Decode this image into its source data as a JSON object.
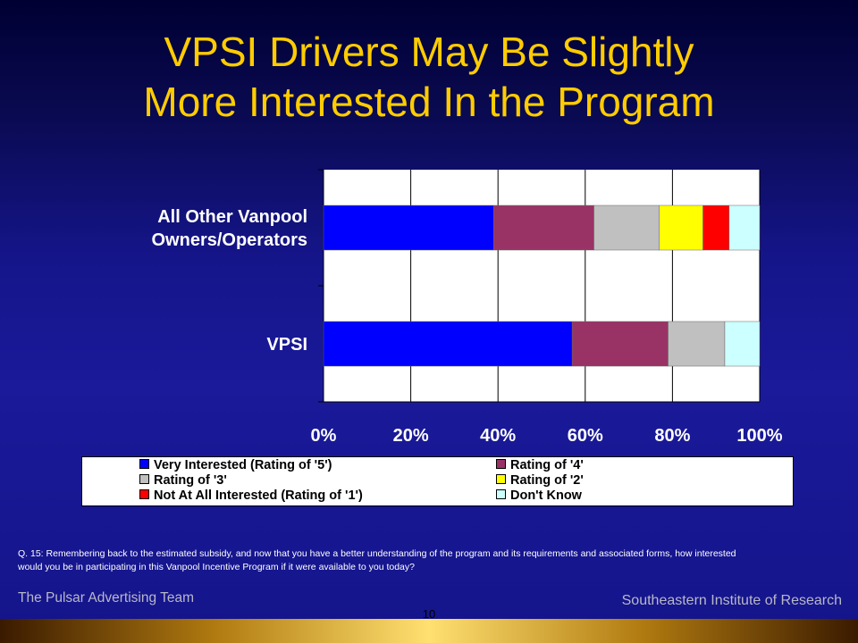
{
  "title_lines": [
    "VPSI Drivers May Be Slightly",
    "More Interested In the Program"
  ],
  "chart_data": {
    "type": "bar",
    "orientation": "horizontal",
    "stacked": true,
    "percent": true,
    "categories": [
      [
        "All Other Vanpool",
        "Owners/Operators"
      ],
      [
        "VPSI"
      ]
    ],
    "series": [
      {
        "name": "Very Interested (Rating of '5')",
        "color": "#0000ff",
        "values": [
          39,
          57
        ]
      },
      {
        "name": "Rating of '4'",
        "color": "#993366",
        "values": [
          23,
          22
        ]
      },
      {
        "name": "Rating of '3'",
        "color": "#c0c0c0",
        "values": [
          15,
          13
        ]
      },
      {
        "name": "Rating of '2'",
        "color": "#ffff00",
        "values": [
          10,
          0
        ]
      },
      {
        "name": "Not At All Interested (Rating of '1')",
        "color": "#ff0000",
        "values": [
          6,
          0
        ]
      },
      {
        "name": "Don't Know",
        "color": "#ccffff",
        "values": [
          7,
          8
        ]
      }
    ],
    "x_ticks": [
      "0%",
      "20%",
      "40%",
      "60%",
      "80%",
      "100%"
    ],
    "xlim": [
      0,
      100
    ],
    "grid": true,
    "legend": "bottom",
    "plot_background": "#ffffff"
  },
  "question": "Q. 15: Remembering back to the estimated subsidy, and now that you have a better understanding of the program and its requirements and associated forms, how interested would you be in participating in this Vanpool Incentive Program if it were available to you today?",
  "footer_left": "The Pulsar Advertising Team",
  "footer_right": "Southeastern Institute of Research",
  "page_number": "10"
}
